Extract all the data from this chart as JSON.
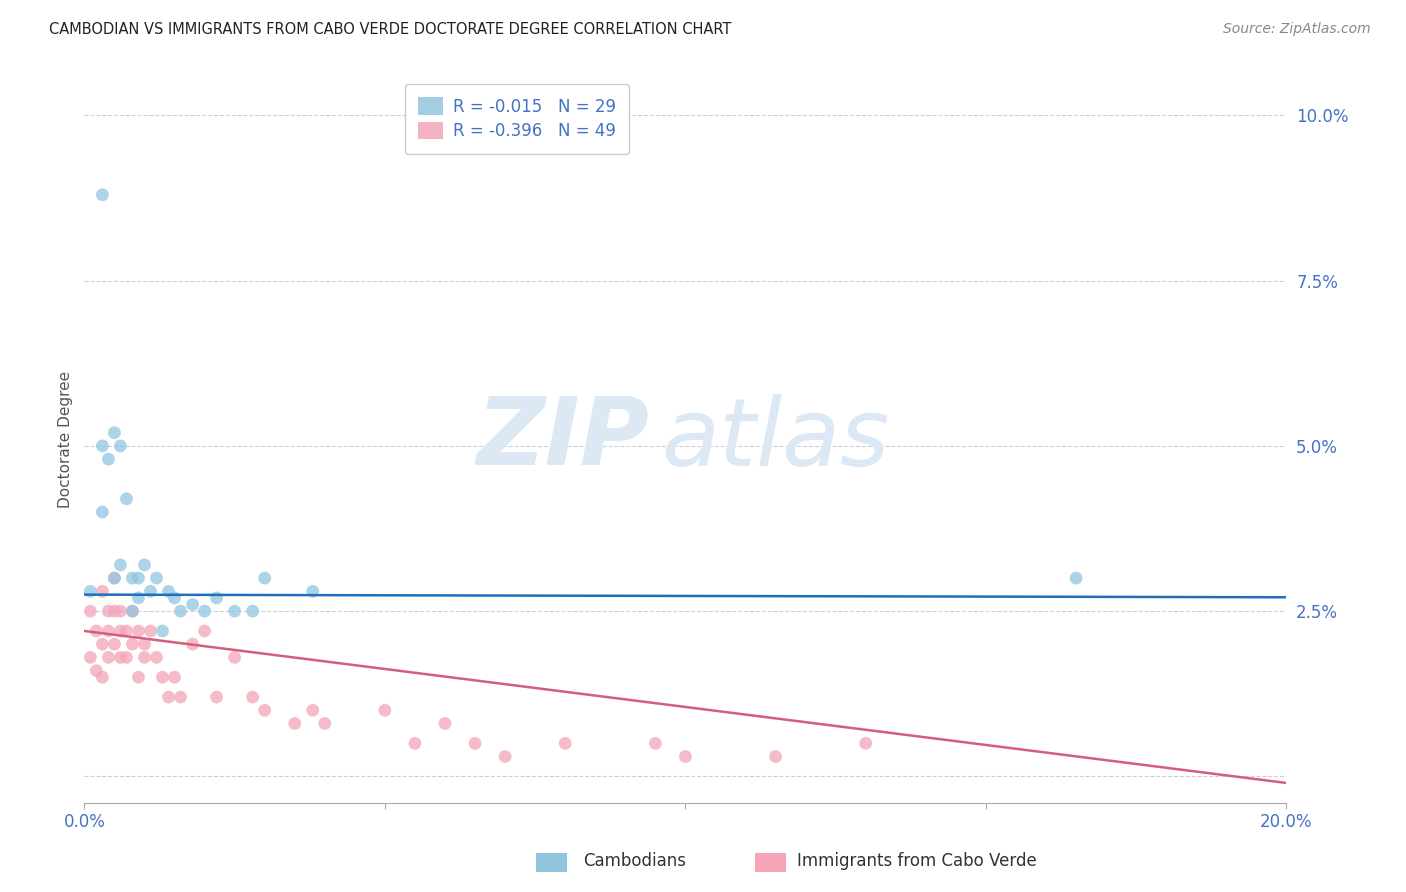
{
  "title": "CAMBODIAN VS IMMIGRANTS FROM CABO VERDE DOCTORATE DEGREE CORRELATION CHART",
  "source": "Source: ZipAtlas.com",
  "ylabel": "Doctorate Degree",
  "right_yticklabels": [
    "",
    "2.5%",
    "5.0%",
    "7.5%",
    "10.0%"
  ],
  "right_yticks": [
    0.0,
    0.025,
    0.05,
    0.075,
    0.1
  ],
  "xmin": 0.0,
  "xmax": 0.2,
  "ymin": -0.004,
  "ymax": 0.106,
  "watermark_zip": "ZIP",
  "watermark_atlas": "atlas",
  "legend_r1": "R = -0.015",
  "legend_n1": "N = 29",
  "legend_r2": "R = -0.396",
  "legend_n2": "N = 49",
  "cambodian_color": "#92c5de",
  "caboverde_color": "#f4a5b8",
  "cambodian_line_color": "#1f6fba",
  "caboverde_line_color": "#d45f7a",
  "grid_color": "#d0d0d0",
  "title_color": "#222222",
  "source_color": "#888888",
  "tick_color": "#4472c4",
  "ylabel_color": "#555555",
  "background_color": "#ffffff",
  "scatter_alpha": 0.75,
  "marker_size": 85,
  "cambodian_x": [
    0.003,
    0.001,
    0.003,
    0.004,
    0.003,
    0.005,
    0.005,
    0.006,
    0.006,
    0.007,
    0.008,
    0.008,
    0.009,
    0.009,
    0.01,
    0.011,
    0.012,
    0.013,
    0.014,
    0.015,
    0.016,
    0.018,
    0.02,
    0.022,
    0.025,
    0.028,
    0.03,
    0.038,
    0.165
  ],
  "cambodian_y": [
    0.088,
    0.028,
    0.05,
    0.048,
    0.04,
    0.052,
    0.03,
    0.05,
    0.032,
    0.042,
    0.03,
    0.025,
    0.03,
    0.027,
    0.032,
    0.028,
    0.03,
    0.022,
    0.028,
    0.027,
    0.025,
    0.026,
    0.025,
    0.027,
    0.025,
    0.025,
    0.03,
    0.028,
    0.03
  ],
  "caboverde_x": [
    0.001,
    0.001,
    0.002,
    0.002,
    0.003,
    0.003,
    0.003,
    0.004,
    0.004,
    0.004,
    0.005,
    0.005,
    0.005,
    0.006,
    0.006,
    0.006,
    0.007,
    0.007,
    0.008,
    0.008,
    0.009,
    0.009,
    0.01,
    0.01,
    0.011,
    0.012,
    0.013,
    0.014,
    0.015,
    0.016,
    0.018,
    0.02,
    0.022,
    0.025,
    0.028,
    0.03,
    0.035,
    0.038,
    0.04,
    0.05,
    0.055,
    0.06,
    0.065,
    0.07,
    0.08,
    0.095,
    0.1,
    0.115,
    0.13
  ],
  "caboverde_y": [
    0.025,
    0.018,
    0.022,
    0.016,
    0.028,
    0.02,
    0.015,
    0.025,
    0.018,
    0.022,
    0.03,
    0.025,
    0.02,
    0.022,
    0.018,
    0.025,
    0.022,
    0.018,
    0.025,
    0.02,
    0.022,
    0.015,
    0.018,
    0.02,
    0.022,
    0.018,
    0.015,
    0.012,
    0.015,
    0.012,
    0.02,
    0.022,
    0.012,
    0.018,
    0.012,
    0.01,
    0.008,
    0.01,
    0.008,
    0.01,
    0.005,
    0.008,
    0.005,
    0.003,
    0.005,
    0.005,
    0.003,
    0.003,
    0.005
  ]
}
